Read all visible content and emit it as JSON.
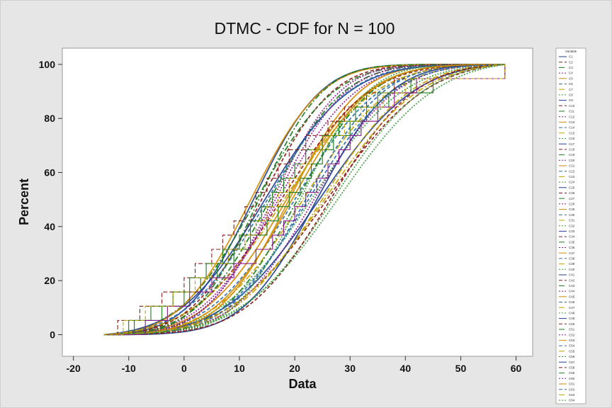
{
  "chart_data": {
    "type": "line",
    "title": "DTMC - CDF for N = 100",
    "xlabel": "Data",
    "ylabel": "Percent",
    "xlim": [
      -22,
      63
    ],
    "ylim": [
      -8,
      106
    ],
    "xticks": [
      -20,
      -10,
      0,
      10,
      20,
      30,
      40,
      50,
      60
    ],
    "yticks": [
      0,
      20,
      40,
      60,
      80,
      100
    ],
    "grid": false,
    "legend": {
      "placement": "right",
      "title": "Variable",
      "entries": [
        "C1",
        "C2",
        "C3",
        "C4",
        "C5",
        "C6",
        "C7",
        "C8",
        "C9",
        "C10",
        "C11",
        "C12",
        "C13",
        "C14",
        "C15",
        "C16",
        "C17",
        "C18",
        "C19",
        "C20",
        "C21",
        "C22",
        "C23",
        "C24",
        "C25",
        "C26",
        "C27",
        "C28",
        "C29",
        "C30",
        "C31",
        "C32",
        "C33",
        "C34",
        "C35",
        "C36",
        "C37",
        "C38",
        "C39",
        "C40",
        "C41",
        "C42",
        "C43",
        "C44",
        "C45",
        "C46",
        "C47",
        "C48",
        "C49",
        "C50",
        "C51",
        "C52",
        "C53",
        "C54",
        "C55",
        "C56",
        "C57",
        "C58",
        "C59",
        "C60",
        "C61",
        "C62",
        "C63",
        "C64"
      ]
    },
    "series_curve_model": "normal-cdf",
    "x_curve_range": [
      -14.5,
      58
    ],
    "series_curve_params": [
      {
        "mean": 12.5,
        "sd": 9.5
      },
      {
        "mean": 14.0,
        "sd": 10.0
      },
      {
        "mean": 15.5,
        "sd": 10.5
      },
      {
        "mean": 17.0,
        "sd": 11.0
      },
      {
        "mean": 18.5,
        "sd": 11.5
      },
      {
        "mean": 20.0,
        "sd": 12.0
      },
      {
        "mean": 21.5,
        "sd": 12.5
      },
      {
        "mean": 23.0,
        "sd": 13.0
      },
      {
        "mean": 24.5,
        "sd": 13.5
      },
      {
        "mean": 26.0,
        "sd": 14.0
      },
      {
        "mean": 13.0,
        "sd": 11.0
      },
      {
        "mean": 16.0,
        "sd": 9.5
      },
      {
        "mean": 19.0,
        "sd": 10.0
      },
      {
        "mean": 22.0,
        "sd": 11.0
      },
      {
        "mean": 25.0,
        "sd": 12.5
      },
      {
        "mean": 27.0,
        "sd": 13.0
      },
      {
        "mean": 14.5,
        "sd": 12.0
      },
      {
        "mean": 17.5,
        "sd": 12.5
      },
      {
        "mean": 20.5,
        "sd": 10.5
      },
      {
        "mean": 23.5,
        "sd": 11.5
      },
      {
        "mean": 12.0,
        "sd": 10.0
      },
      {
        "mean": 15.0,
        "sd": 11.5
      },
      {
        "mean": 18.0,
        "sd": 13.0
      },
      {
        "mean": 21.0,
        "sd": 9.5
      },
      {
        "mean": 24.0,
        "sd": 10.5
      },
      {
        "mean": 26.5,
        "sd": 12.0
      },
      {
        "mean": 13.5,
        "sd": 9.0
      },
      {
        "mean": 16.5,
        "sd": 10.0
      },
      {
        "mean": 19.5,
        "sd": 11.0
      },
      {
        "mean": 22.5,
        "sd": 12.0
      },
      {
        "mean": 25.5,
        "sd": 13.5
      },
      {
        "mean": 28.0,
        "sd": 14.0
      }
    ],
    "step_series": [
      {
        "values": [
          -14.5,
          -12,
          -8,
          -4,
          0,
          2,
          5,
          7,
          9,
          11,
          13,
          15,
          17,
          19,
          22,
          26,
          29,
          33,
          38,
          58
        ],
        "color": "#8b1a1a",
        "dash": "6,3"
      },
      {
        "values": [
          -14.5,
          -10,
          -6,
          -2,
          1,
          4,
          7,
          10,
          12,
          14,
          16,
          18,
          20,
          22,
          25,
          28,
          31,
          35,
          41,
          58
        ],
        "color": "#1b7a1b",
        "dash": ""
      },
      {
        "values": [
          -14.5,
          -9,
          -4,
          0,
          3,
          6,
          9,
          12,
          15,
          17,
          19,
          21,
          23,
          25,
          27,
          30,
          33,
          37,
          45,
          58
        ],
        "color": "#1b7a1b",
        "dash": ""
      },
      {
        "values": [
          -14.5,
          -7,
          -3,
          1,
          5,
          9,
          13,
          16,
          18,
          20,
          22,
          24,
          26,
          28,
          30,
          32,
          35,
          38,
          42,
          58
        ],
        "color": "#8b1a8b",
        "dash": ""
      },
      {
        "values": [
          -14.5,
          -11,
          -7,
          -2,
          2,
          5,
          8,
          11,
          13,
          15,
          17,
          19,
          21,
          23,
          26,
          29,
          32,
          36,
          40,
          58
        ],
        "color": "#c2a000",
        "dash": "5,3"
      }
    ]
  },
  "colors": [
    "#1f3f8f",
    "#8b1a1a",
    "#1b7a1b",
    "#8b1a8b",
    "#d38b00",
    "#2a6fa8",
    "#c2a000",
    "#3a9a3a"
  ]
}
